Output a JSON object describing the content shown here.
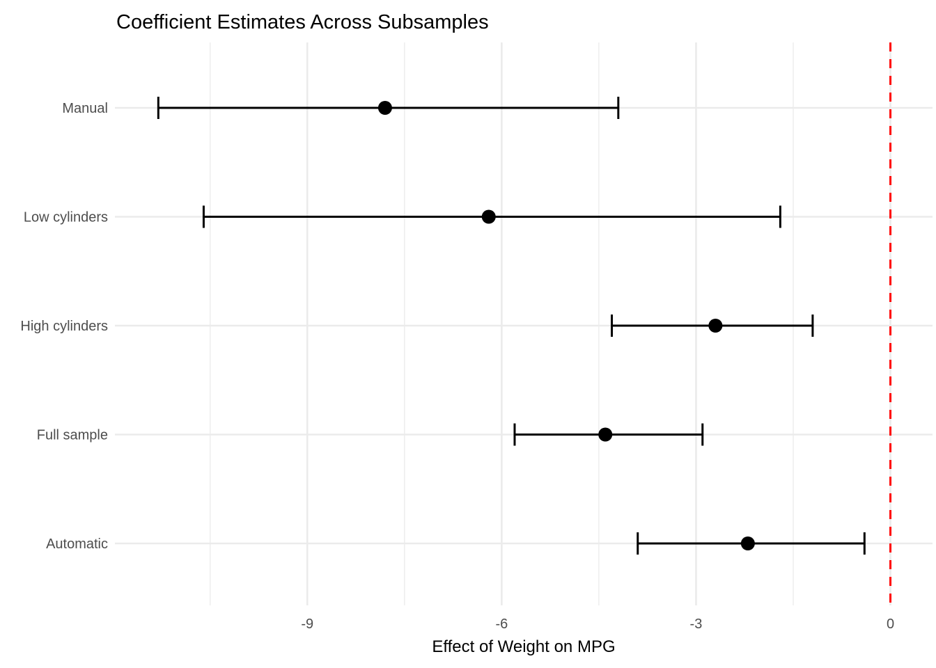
{
  "title": "Coefficient Estimates Across Subsamples",
  "colors": {
    "background": "#ffffff",
    "grid": "#ebebeb",
    "point": "#000000",
    "errorbar": "#000000",
    "zero_line": "#ff0000",
    "tick_label": "#4d4d4d",
    "title_text": "#000000"
  },
  "chart_data": {
    "type": "scatter",
    "subtype": "coefficient-plot-with-horizontal-error-bars",
    "title": "Coefficient Estimates Across Subsamples",
    "xlabel": "Effect of Weight on MPG",
    "ylabel": "",
    "categories": [
      "Manual",
      "Low cylinders",
      "High cylinders",
      "Full sample",
      "Automatic"
    ],
    "series": [
      {
        "name": "coefficient-estimate",
        "estimates": [
          -7.8,
          -6.2,
          -2.7,
          -4.4,
          -2.2
        ],
        "ci_lower": [
          -11.3,
          -10.6,
          -4.3,
          -5.8,
          -3.9
        ],
        "ci_upper": [
          -4.2,
          -1.7,
          -1.2,
          -2.9,
          -0.4
        ]
      }
    ],
    "x_ticks": [
      -9,
      -6,
      -3,
      0
    ],
    "x_tick_labels": [
      "-9",
      "-6",
      "-3",
      "0"
    ],
    "x_minor_ticks": [
      -10.5,
      -7.5,
      -4.5,
      -1.5
    ],
    "xlim": [
      -11.97,
      0.65
    ],
    "reference_line_x": 0,
    "reference_line_style": "dashed",
    "grid": true,
    "legend": false
  }
}
